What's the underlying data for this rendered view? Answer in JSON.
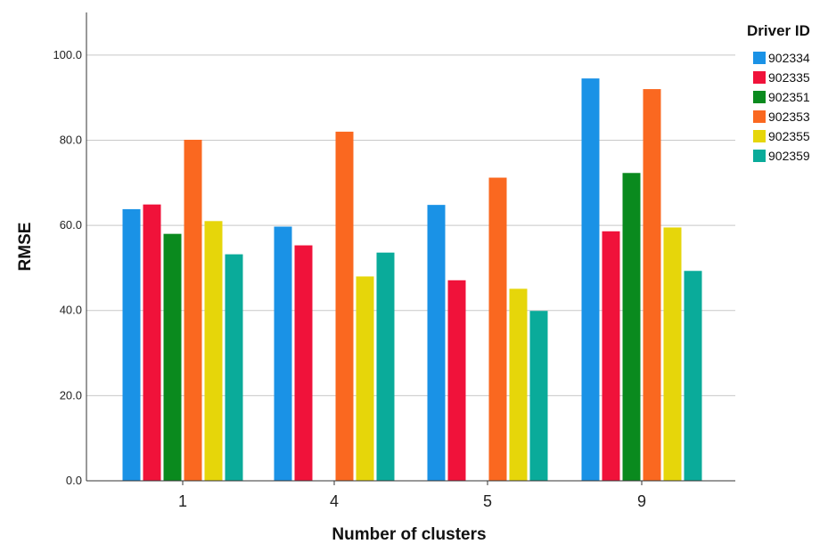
{
  "chart_data": {
    "type": "bar",
    "xlabel": "Number of clusters",
    "ylabel": "RMSE",
    "ylim": [
      0,
      110
    ],
    "yticks": [
      "0.0",
      "20.0",
      "40.0",
      "60.0",
      "80.0",
      "100.0"
    ],
    "grid": "horizontal",
    "legend_title": "Driver ID",
    "legend_position": "top-right",
    "categories": [
      "1",
      "4",
      "5",
      "9"
    ],
    "series": [
      {
        "name": "902334",
        "color": "#1a92e6",
        "values": [
          63.8,
          59.7,
          64.8,
          94.5
        ]
      },
      {
        "name": "902335",
        "color": "#f0123a",
        "values": [
          64.9,
          55.3,
          47.1,
          58.6
        ]
      },
      {
        "name": "902351",
        "color": "#0a8a1e",
        "values": [
          58.0,
          null,
          null,
          72.3
        ]
      },
      {
        "name": "902353",
        "color": "#fa6820",
        "values": [
          80.1,
          82.0,
          71.2,
          92.0
        ]
      },
      {
        "name": "902355",
        "color": "#e6d60a",
        "values": [
          61.0,
          48.0,
          45.1,
          59.5
        ]
      },
      {
        "name": "902359",
        "color": "#0aab9a",
        "values": [
          53.2,
          53.6,
          39.9,
          49.3
        ]
      }
    ]
  }
}
